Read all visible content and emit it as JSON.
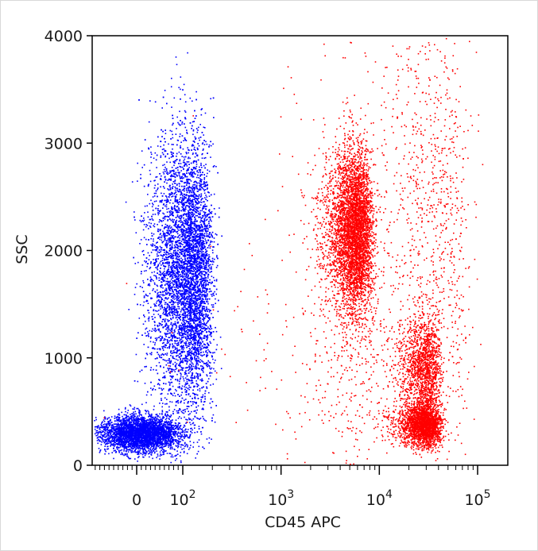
{
  "chart_data": {
    "type": "scatter",
    "title": "",
    "xlabel": "CD45 APC",
    "ylabel": "SSC",
    "x_scale": "biexponential",
    "ylim": [
      0,
      4000
    ],
    "y_ticks": [
      {
        "value": 0,
        "label": "0"
      },
      {
        "value": 1000,
        "label": "1000"
      },
      {
        "value": 2000,
        "label": "2000"
      },
      {
        "value": 3000,
        "label": "3000"
      },
      {
        "value": 4000,
        "label": "4000"
      }
    ],
    "x_ticks": [
      {
        "value": 0,
        "base": "0",
        "exp": ""
      },
      {
        "value": 100,
        "base": "10",
        "exp": "2"
      },
      {
        "value": 1000,
        "base": "10",
        "exp": "3"
      },
      {
        "value": 10000,
        "base": "10",
        "exp": "4"
      },
      {
        "value": 100000,
        "base": "10",
        "exp": "5"
      }
    ],
    "series": [
      {
        "color": "#0000ff",
        "populations": [
          {
            "x_center": 10,
            "x_spread": 60,
            "y_center": 300,
            "y_spread": 120,
            "count": 3500
          },
          {
            "x_center": 110,
            "x_spread": 60,
            "y_center": 1800,
            "y_spread": 900,
            "count": 7000
          }
        ]
      },
      {
        "color": "#ff0000",
        "populations": [
          {
            "x_center": 5500,
            "x_spread": 2000,
            "y_center": 2200,
            "y_spread": 550,
            "count": 4500
          },
          {
            "x_center": 28000,
            "x_spread": 10000,
            "y_center": 380,
            "y_spread": 140,
            "count": 2200
          },
          {
            "x_center": 28000,
            "x_spread": 9000,
            "y_center": 900,
            "y_spread": 350,
            "count": 1500
          },
          {
            "x_center": 20000,
            "x_spread": 40000,
            "y_center": 2200,
            "y_spread": 1600,
            "count": 1600
          },
          {
            "x_center": 3000,
            "x_spread": 6000,
            "y_center": 900,
            "y_spread": 700,
            "count": 400
          }
        ]
      }
    ]
  }
}
